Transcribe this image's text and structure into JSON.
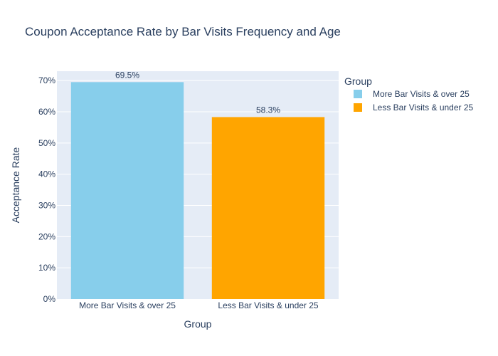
{
  "chart_data": {
    "type": "bar",
    "title": "Coupon Acceptance Rate by Bar Visits Frequency and Age",
    "xlabel": "Group",
    "ylabel": "Acceptance Rate",
    "categories": [
      "More Bar Visits & over 25",
      "Less Bar Visits & under 25"
    ],
    "values": [
      0.695,
      0.583
    ],
    "data_labels": [
      "69.5%",
      "58.3%"
    ],
    "colors": [
      "#87ceeb",
      "#ffa500"
    ],
    "ylim": [
      0,
      0.73
    ],
    "yticks": [
      0,
      0.1,
      0.2,
      0.3,
      0.4,
      0.5,
      0.6,
      0.7
    ],
    "ytick_labels": [
      "0%",
      "10%",
      "20%",
      "30%",
      "40%",
      "50%",
      "60%",
      "70%"
    ],
    "grid": true,
    "legend": {
      "title": "Group",
      "position": "right",
      "entries": [
        "More Bar Visits & over 25",
        "Less Bar Visits & under 25"
      ]
    }
  }
}
